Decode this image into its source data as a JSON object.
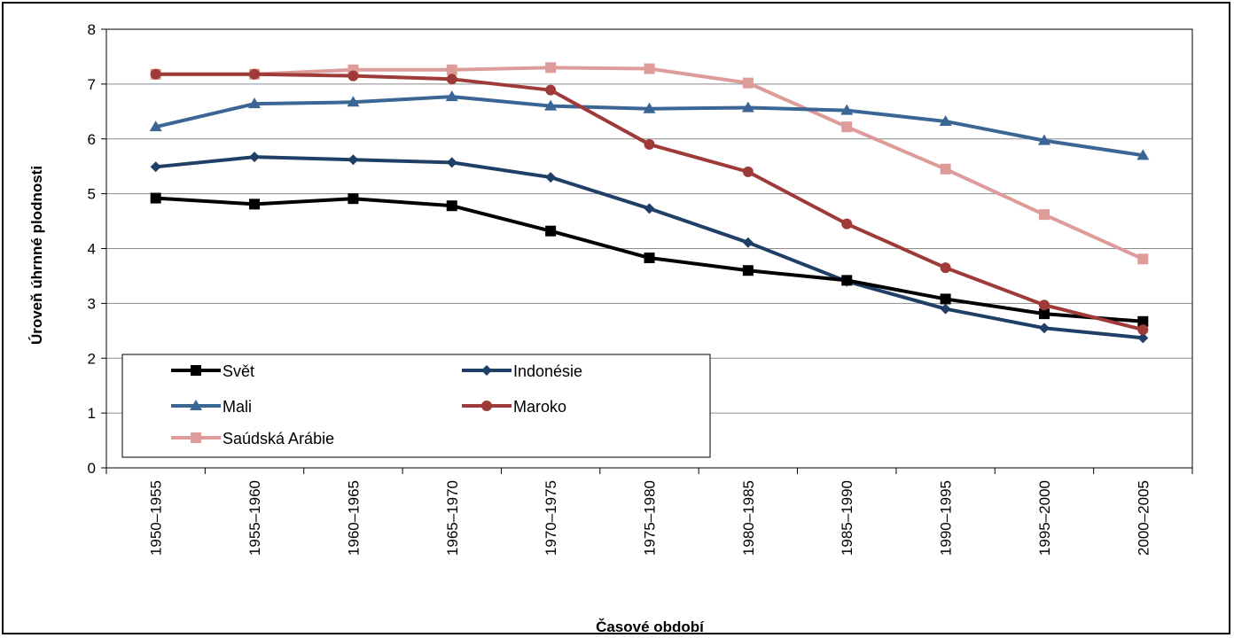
{
  "chart_data": {
    "type": "line",
    "title": "",
    "xlabel": "Časové období",
    "ylabel": "Úroveň úhrnné plodnosti",
    "ylim": [
      0,
      8
    ],
    "yticks": [
      "0",
      "1",
      "2",
      "3",
      "4",
      "5",
      "6",
      "7",
      "8"
    ],
    "grid": "horizontal",
    "legend_position": "bottom-left",
    "categories": [
      "1950–1955",
      "1955–1960",
      "1960–1965",
      "1965–1970",
      "1970–1975",
      "1975–1980",
      "1980–1985",
      "1985–1990",
      "1990–1995",
      "1995–2000",
      "2000–2005"
    ],
    "series": [
      {
        "name": "Svět",
        "color": "#000000",
        "marker": "square",
        "values": [
          4.92,
          4.81,
          4.91,
          4.78,
          4.32,
          3.83,
          3.6,
          3.42,
          3.08,
          2.81,
          2.67
        ]
      },
      {
        "name": "Indonésie",
        "color": "#1f3f66",
        "marker": "diamond",
        "values": [
          5.49,
          5.67,
          5.62,
          5.57,
          5.3,
          4.73,
          4.11,
          3.4,
          2.9,
          2.55,
          2.37
        ]
      },
      {
        "name": "Mali",
        "color": "#3a6594",
        "marker": "triangle",
        "values": [
          6.22,
          6.64,
          6.67,
          6.77,
          6.6,
          6.55,
          6.57,
          6.52,
          6.32,
          5.97,
          5.7
        ]
      },
      {
        "name": "Maroko",
        "color": "#9e3a38",
        "marker": "circle",
        "values": [
          7.18,
          7.18,
          7.15,
          7.09,
          6.89,
          5.9,
          5.4,
          4.45,
          3.65,
          2.97,
          2.52
        ]
      },
      {
        "name": "Saúdská Arábie",
        "color": "#dd9b9a",
        "marker": "square",
        "values": [
          7.18,
          7.18,
          7.26,
          7.26,
          7.3,
          7.28,
          7.02,
          6.22,
          5.45,
          4.62,
          3.81
        ]
      }
    ]
  }
}
